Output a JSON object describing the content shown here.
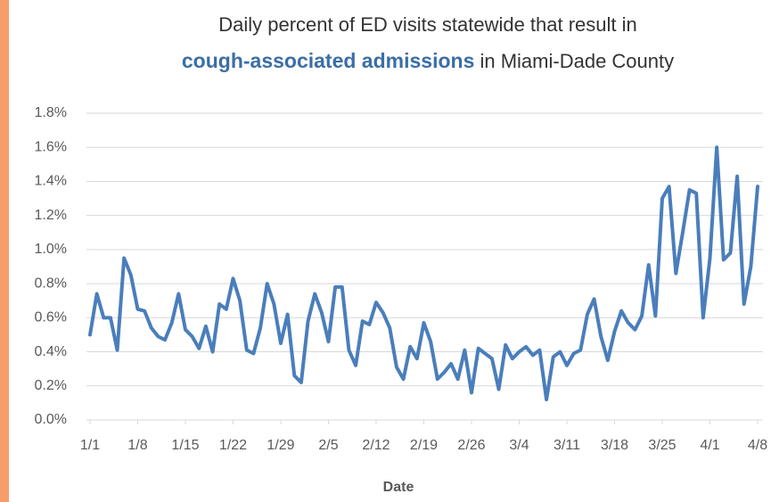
{
  "chart_data": {
    "type": "line",
    "title": "Daily percent of ED visits statewide that result in",
    "title_emphasis": "cough-associated admissions",
    "title_rest": "in Miami-Dade County",
    "x_label": "Date",
    "categories": [
      "1/1",
      null,
      null,
      null,
      null,
      null,
      null,
      "1/8",
      null,
      null,
      null,
      null,
      null,
      null,
      "1/15",
      null,
      null,
      null,
      null,
      null,
      null,
      "1/22",
      null,
      null,
      null,
      null,
      null,
      null,
      "1/29",
      null,
      null,
      null,
      null,
      null,
      null,
      "2/5",
      null,
      null,
      null,
      null,
      null,
      null,
      "2/12",
      null,
      null,
      null,
      null,
      null,
      null,
      "2/19",
      null,
      null,
      null,
      null,
      null,
      null,
      "2/26",
      null,
      null,
      null,
      null,
      null,
      null,
      "3/4",
      null,
      null,
      null,
      null,
      null,
      null,
      "3/11",
      null,
      null,
      null,
      null,
      null,
      null,
      "3/18",
      null,
      null,
      null,
      null,
      null,
      null,
      "3/25",
      null,
      null,
      null,
      null,
      null,
      null,
      "4/1",
      null,
      null,
      null,
      null,
      null,
      null,
      "4/8"
    ],
    "values": [
      0.5,
      0.74,
      0.6,
      0.6,
      0.41,
      0.95,
      0.85,
      0.65,
      0.64,
      0.54,
      0.49,
      0.47,
      0.57,
      0.74,
      0.53,
      0.49,
      0.42,
      0.55,
      0.4,
      0.68,
      0.65,
      0.83,
      0.7,
      0.41,
      0.39,
      0.54,
      0.8,
      0.68,
      0.45,
      0.62,
      0.26,
      0.22,
      0.58,
      0.74,
      0.63,
      0.46,
      0.78,
      0.78,
      0.41,
      0.32,
      0.58,
      0.56,
      0.69,
      0.63,
      0.54,
      0.31,
      0.24,
      0.43,
      0.36,
      0.57,
      0.46,
      0.24,
      0.28,
      0.33,
      0.24,
      0.41,
      0.16,
      0.42,
      0.39,
      0.36,
      0.18,
      0.44,
      0.36,
      0.4,
      0.43,
      0.38,
      0.41,
      0.12,
      0.37,
      0.4,
      0.32,
      0.39,
      0.41,
      0.62,
      0.71,
      0.49,
      0.35,
      0.52,
      0.64,
      0.57,
      0.53,
      0.61,
      0.91,
      0.61,
      1.3,
      1.37,
      0.86,
      1.1,
      1.35,
      1.33,
      0.6,
      0.95,
      1.6,
      0.94,
      0.98,
      1.43,
      0.68,
      0.9,
      1.37
    ],
    "color": "#4a7ebb",
    "ylim": [
      0,
      1.8
    ],
    "yticks": [
      {
        "value": 0,
        "label": "0.0%"
      },
      {
        "value": 0.2,
        "label": "0.2%"
      },
      {
        "value": 0.4,
        "label": "0.4%"
      },
      {
        "value": 0.6,
        "label": "0.6%"
      },
      {
        "value": 0.8,
        "label": "0.8%"
      },
      {
        "value": 1.0,
        "label": "1.0%"
      },
      {
        "value": 1.2,
        "label": "1.2%"
      },
      {
        "value": 1.4,
        "label": "1.4%"
      },
      {
        "value": 1.6,
        "label": "1.6%"
      },
      {
        "value": 1.8,
        "label": "1.8%"
      }
    ],
    "grid": true
  }
}
